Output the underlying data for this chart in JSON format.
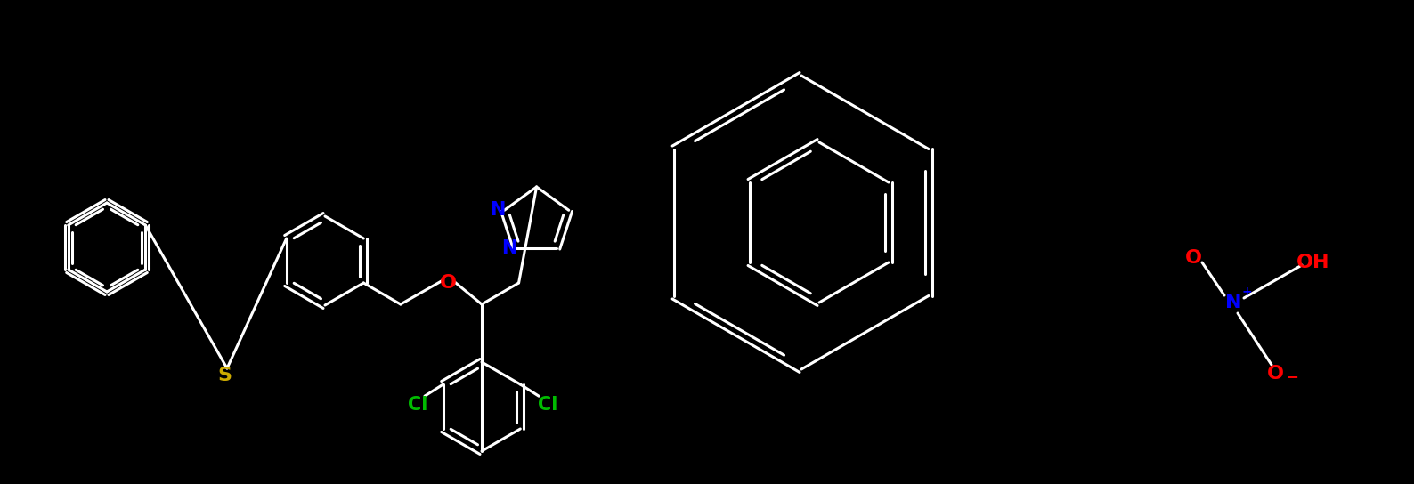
{
  "bg_color": "#000000",
  "bond_color": "#ffffff",
  "bond_width": 2.2,
  "figsize": [
    15.88,
    5.44
  ],
  "dpi": 100,
  "colors": {
    "N": "#0000ff",
    "O": "#ff0000",
    "S": "#ccaa00",
    "Cl": "#00bb00",
    "C": "#ffffff",
    "Nplus": "#0000ff",
    "Ominus": "#ff0000"
  },
  "font_size": 15
}
